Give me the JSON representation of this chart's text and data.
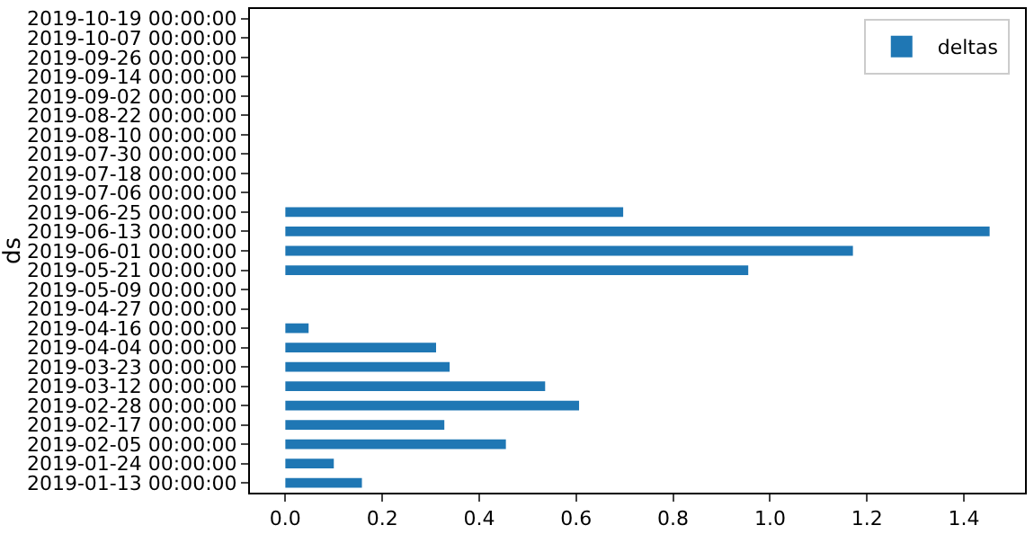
{
  "chart_data": {
    "type": "bar",
    "orientation": "horizontal",
    "ylabel": "ds",
    "categories": [
      "2019-10-19 00:00:00",
      "2019-10-07 00:00:00",
      "2019-09-26 00:00:00",
      "2019-09-14 00:00:00",
      "2019-09-02 00:00:00",
      "2019-08-22 00:00:00",
      "2019-08-10 00:00:00",
      "2019-07-30 00:00:00",
      "2019-07-18 00:00:00",
      "2019-07-06 00:00:00",
      "2019-06-25 00:00:00",
      "2019-06-13 00:00:00",
      "2019-06-01 00:00:00",
      "2019-05-21 00:00:00",
      "2019-05-09 00:00:00",
      "2019-04-27 00:00:00",
      "2019-04-16 00:00:00",
      "2019-04-04 00:00:00",
      "2019-03-23 00:00:00",
      "2019-03-12 00:00:00",
      "2019-02-28 00:00:00",
      "2019-02-17 00:00:00",
      "2019-02-05 00:00:00",
      "2019-01-24 00:00:00",
      "2019-01-13 00:00:00"
    ],
    "series": [
      {
        "name": "deltas",
        "color": "#1f77b4",
        "values": [
          null,
          null,
          null,
          null,
          null,
          null,
          null,
          null,
          null,
          null,
          0.697,
          1.453,
          1.171,
          0.955,
          null,
          null,
          0.048,
          0.311,
          0.339,
          0.536,
          0.606,
          0.328,
          0.455,
          0.1,
          0.158
        ]
      }
    ],
    "xlim": [
      -0.073,
      1.526
    ],
    "xticks": [
      {
        "value": 0,
        "label": "0.0"
      },
      {
        "value": 0.2,
        "label": "0.2"
      },
      {
        "value": 0.4,
        "label": "0.4"
      },
      {
        "value": 0.6,
        "label": "0.6"
      },
      {
        "value": 0.8,
        "label": "0.8"
      },
      {
        "value": 1,
        "label": "1.0"
      },
      {
        "value": 1.2,
        "label": "1.2"
      },
      {
        "value": 1.4,
        "label": "1.4"
      }
    ],
    "legend": "top right"
  }
}
